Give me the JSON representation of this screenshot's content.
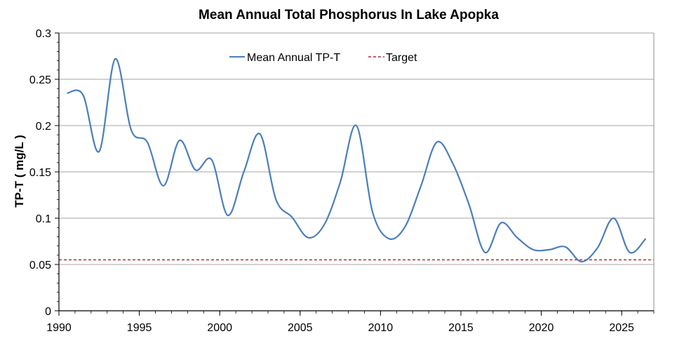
{
  "chart_data": {
    "type": "line",
    "title": "Mean Annual Total Phosphorus In Lake Apopka",
    "xlabel": "",
    "ylabel": "TP-T ( mg/L )",
    "xlim": [
      1990,
      2027
    ],
    "ylim": [
      0,
      0.3
    ],
    "x_ticks": [
      1990,
      1995,
      2000,
      2005,
      2010,
      2015,
      2020,
      2025
    ],
    "y_ticks": [
      0,
      0.05,
      0.1,
      0.15,
      0.2,
      0.25,
      0.3
    ],
    "x_tick_labels": [
      "1990",
      "1995",
      "2000",
      "2005",
      "2010",
      "2015",
      "2020",
      "2025"
    ],
    "y_tick_labels": [
      "0",
      "0.05",
      "0.1",
      "0.15",
      "0.2",
      "0.25",
      "0.3"
    ],
    "grid": "horizontal",
    "legend_position": "top",
    "series": [
      {
        "name": "Mean Annual TP-T",
        "color": "#4a7ebb",
        "style": "solid",
        "x": [
          1990.5,
          1991.5,
          1992.5,
          1993.5,
          1994.5,
          1995.5,
          1996.5,
          1997.5,
          1998.5,
          1999.5,
          2000.5,
          2001.5,
          2002.5,
          2003.5,
          2004.5,
          2005.5,
          2006.5,
          2007.5,
          2008.5,
          2009.5,
          2010.5,
          2011.5,
          2012.5,
          2013.5,
          2014.5,
          2015.5,
          2016.5,
          2017.5,
          2018.5,
          2019.5,
          2020.5,
          2021.5,
          2022.5,
          2023.5,
          2024.5,
          2025.5,
          2026.5
        ],
        "y": [
          0.235,
          0.233,
          0.172,
          0.272,
          0.195,
          0.182,
          0.135,
          0.184,
          0.152,
          0.163,
          0.103,
          0.15,
          0.191,
          0.12,
          0.101,
          0.079,
          0.093,
          0.139,
          0.2,
          0.107,
          0.078,
          0.09,
          0.134,
          0.182,
          0.159,
          0.115,
          0.063,
          0.095,
          0.079,
          0.066,
          0.066,
          0.069,
          0.053,
          0.068,
          0.1,
          0.063,
          0.078
        ]
      },
      {
        "name": "Target",
        "color": "#c0272d",
        "style": "dashed",
        "value": 0.055
      }
    ]
  }
}
